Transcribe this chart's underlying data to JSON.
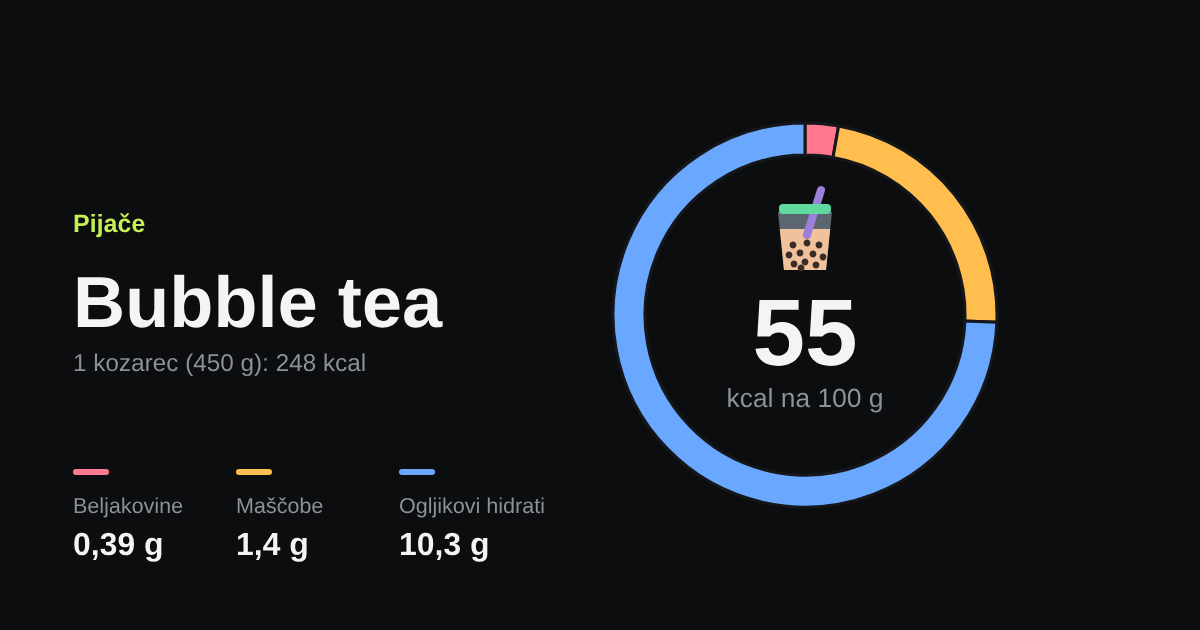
{
  "chart_data": {
    "type": "donut",
    "title": "Bubble tea",
    "subtitle": "1 kozarec (450 g): 248 kcal",
    "categories": [
      "Beljakovine",
      "Maščobe",
      "Ogljikovi hidrati"
    ],
    "values": [
      2.8,
      22.8,
      74.4
    ],
    "colors": [
      "#ff7890",
      "#ffbe4e",
      "#6aa8ff"
    ],
    "legend": "left",
    "annotations": [
      "Pijače",
      "55",
      "kcal na 100 g",
      "0,39 g",
      "1,4 g",
      "10,3 g"
    ]
  }
}
